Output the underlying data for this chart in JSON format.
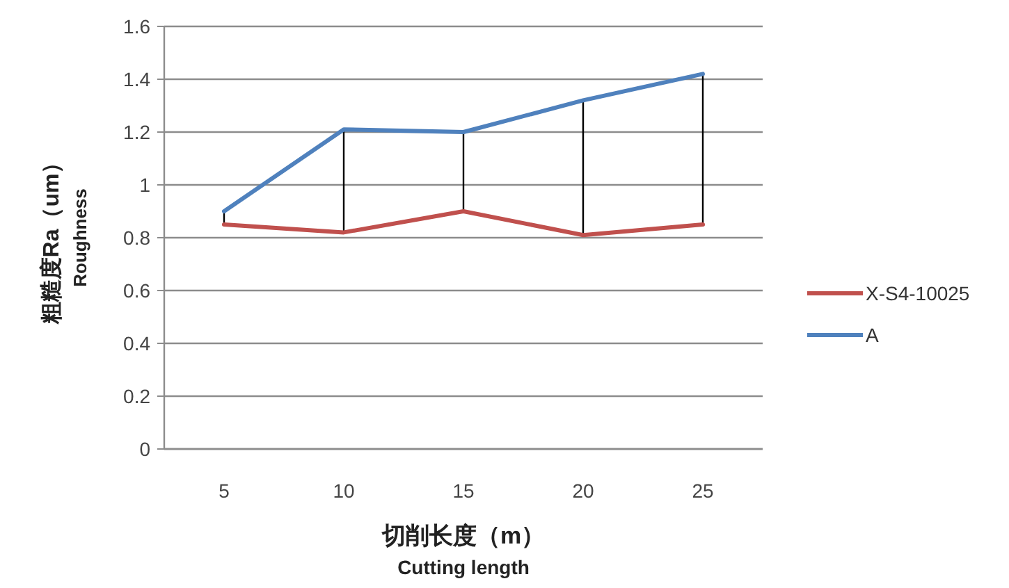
{
  "chart_data": {
    "type": "line",
    "xlabel": "切削长度（m）\nCutting length",
    "ylabel": "粗糙度Ra（um）\nRoughness",
    "categories": [
      "5",
      "10",
      "15",
      "20",
      "25"
    ],
    "series": [
      {
        "name": "X-S4-10025",
        "color": "#c0504d",
        "values": [
          0.85,
          0.82,
          0.9,
          0.81,
          0.85
        ]
      },
      {
        "name": "A",
        "color": "#4f81bd",
        "values": [
          0.9,
          1.21,
          1.2,
          1.32,
          1.42
        ],
        "errors": [
          [
            0.85,
            0.9
          ],
          [
            0.82,
            1.21
          ],
          [
            0.9,
            1.2
          ],
          [
            0.81,
            1.32
          ],
          [
            0.85,
            1.42
          ]
        ]
      }
    ],
    "ylim": [
      0,
      1.6
    ],
    "yticks": [
      0,
      0.2,
      0.4,
      0.6,
      0.8,
      1,
      1.2,
      1.4,
      1.6
    ],
    "grid": "y",
    "legend": "right",
    "marker": "none"
  }
}
